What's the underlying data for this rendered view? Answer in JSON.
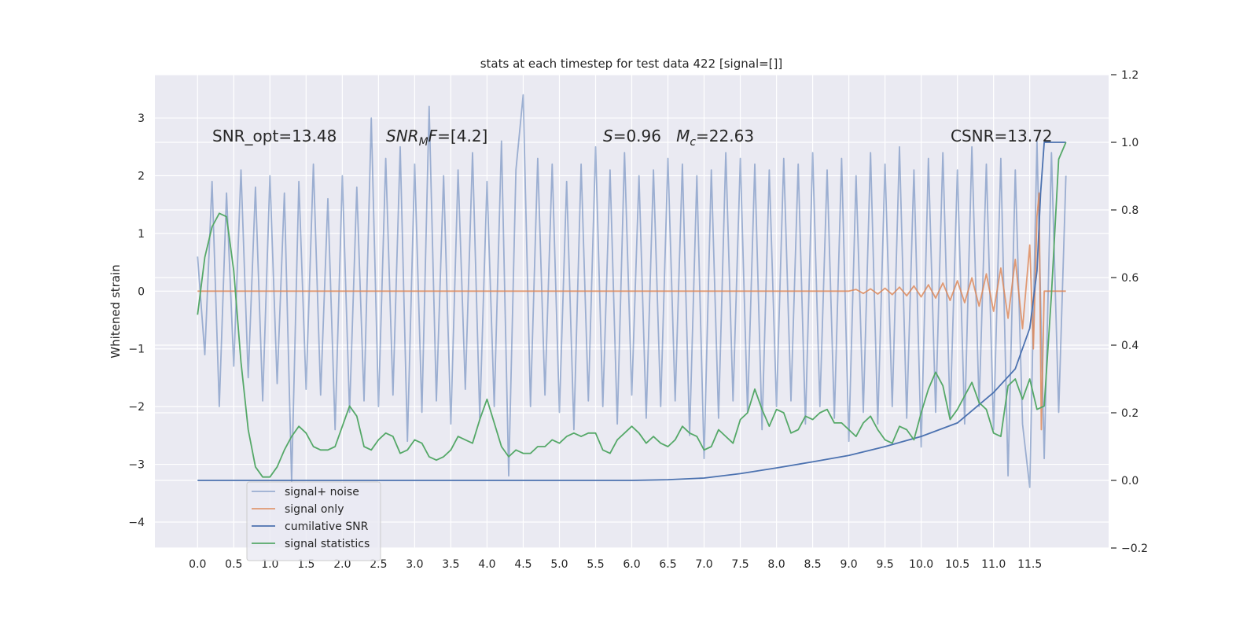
{
  "chart_data": {
    "type": "line",
    "title": "stats at each timestep for test data 422 [signal=[]]",
    "ylabel": "Whitened strain",
    "xlim": [
      -0.59,
      12.59
    ],
    "ylim": [
      -4.45,
      3.75
    ],
    "y2lim": [
      -0.2,
      1.2
    ],
    "grid": true,
    "legend": "lower left",
    "xticks": [
      {
        "value": 0,
        "label": "0.0"
      },
      {
        "value": 0.5,
        "label": "0.5"
      },
      {
        "value": 1,
        "label": "1.0"
      },
      {
        "value": 1.5,
        "label": "1.5"
      },
      {
        "value": 2,
        "label": "2.0"
      },
      {
        "value": 2.5,
        "label": "2.5"
      },
      {
        "value": 3,
        "label": "3.0"
      },
      {
        "value": 3.5,
        "label": "3.5"
      },
      {
        "value": 4,
        "label": "4.0"
      },
      {
        "value": 4.5,
        "label": "4.5"
      },
      {
        "value": 5,
        "label": "5.0"
      },
      {
        "value": 5.5,
        "label": "5.5"
      },
      {
        "value": 6,
        "label": "6.0"
      },
      {
        "value": 6.5,
        "label": "6.5"
      },
      {
        "value": 7,
        "label": "7.0"
      },
      {
        "value": 7.5,
        "label": "7.5"
      },
      {
        "value": 8,
        "label": "8.0"
      },
      {
        "value": 8.5,
        "label": "8.5"
      },
      {
        "value": 9,
        "label": "9.0"
      },
      {
        "value": 9.5,
        "label": "9.5"
      },
      {
        "value": 10,
        "label": "10.0"
      },
      {
        "value": 10.5,
        "label": "10.5"
      },
      {
        "value": 11,
        "label": "11.0"
      },
      {
        "value": 11.5,
        "label": "11.5"
      }
    ],
    "yticks": [
      {
        "value": -4,
        "label": "−4"
      },
      {
        "value": -3,
        "label": "−3"
      },
      {
        "value": -2,
        "label": "−2"
      },
      {
        "value": -1,
        "label": "−1"
      },
      0,
      1,
      2,
      3
    ],
    "y2ticks": [
      {
        "value": -0.2,
        "label": "−0.2"
      },
      {
        "value": 0,
        "label": "0.0"
      },
      0.2,
      0.4,
      0.6,
      0.8,
      {
        "value": 1,
        "label": "1.0"
      },
      {
        "value": 1.2,
        "label": "1.2"
      }
    ],
    "annotations": [
      {
        "parts": [
          {
            "text": "SNR_opt=13.48",
            "style": "normal"
          }
        ]
      },
      {
        "parts": [
          {
            "text": "SNR",
            "style": "italic"
          },
          {
            "text": "M",
            "style": "italic-sub"
          },
          {
            "text": "F",
            "style": "italic"
          },
          {
            "text": "=[4.2]",
            "style": "normal"
          }
        ]
      },
      {
        "parts": [
          {
            "text": "S",
            "style": "italic"
          },
          {
            "text": "=0.96   ",
            "style": "normal"
          },
          {
            "text": "M",
            "style": "italic"
          },
          {
            "text": "c",
            "style": "italic-sub"
          },
          {
            "text": "=22.63",
            "style": "normal"
          }
        ]
      },
      {
        "parts": [
          {
            "text": "CSNR=13.72",
            "style": "normal"
          }
        ]
      }
    ],
    "x": [
      0,
      0.1,
      0.2,
      0.3,
      0.4,
      0.5,
      0.6,
      0.7,
      0.8,
      0.9,
      1,
      1.1,
      1.2,
      1.3,
      1.4,
      1.5,
      1.6,
      1.7,
      1.8,
      1.9,
      2,
      2.1,
      2.2,
      2.3,
      2.4,
      2.5,
      2.6,
      2.7,
      2.8,
      2.9,
      3,
      3.1,
      3.2,
      3.3,
      3.4,
      3.5,
      3.6,
      3.7,
      3.8,
      3.9,
      4,
      4.1,
      4.2,
      4.3,
      4.4,
      4.5,
      4.6,
      4.7,
      4.8,
      4.9,
      5,
      5.1,
      5.2,
      5.3,
      5.4,
      5.5,
      5.6,
      5.7,
      5.8,
      5.9,
      6,
      6.1,
      6.2,
      6.3,
      6.4,
      6.5,
      6.6,
      6.7,
      6.8,
      6.9,
      7,
      7.1,
      7.2,
      7.3,
      7.4,
      7.5,
      7.6,
      7.7,
      7.8,
      7.9,
      8,
      8.1,
      8.2,
      8.3,
      8.4,
      8.5,
      8.6,
      8.7,
      8.8,
      8.9,
      9,
      9.1,
      9.2,
      9.3,
      9.4,
      9.5,
      9.6,
      9.7,
      9.8,
      9.9,
      10,
      10.1,
      10.2,
      10.3,
      10.4,
      10.5,
      10.6,
      10.7,
      10.8,
      10.9,
      11,
      11.1,
      11.2,
      11.3,
      11.4,
      11.5,
      11.6,
      11.7,
      11.8,
      11.9,
      12
    ],
    "series": [
      {
        "name": "signal+ noise",
        "color": "#4c72b0",
        "opacity": 0.5,
        "axis": "y",
        "values": [
          0.6,
          -1.1,
          1.9,
          -2.0,
          1.7,
          -1.3,
          2.1,
          -1.5,
          1.8,
          -1.9,
          2.0,
          -1.6,
          1.7,
          -3.3,
          1.9,
          -1.7,
          2.2,
          -1.8,
          1.6,
          -2.4,
          2.0,
          -2.1,
          1.8,
          -1.9,
          3.0,
          -2.0,
          2.3,
          -1.8,
          2.5,
          -2.6,
          2.2,
          -2.1,
          3.2,
          -1.9,
          2.0,
          -2.3,
          2.1,
          -1.7,
          2.4,
          -2.2,
          1.9,
          -2.0,
          2.6,
          -3.2,
          2.1,
          3.4,
          -2.0,
          2.3,
          -1.8,
          2.2,
          -2.1,
          1.9,
          -2.4,
          2.2,
          -1.9,
          2.5,
          -2.0,
          2.1,
          -2.3,
          2.4,
          -1.8,
          2.0,
          -2.2,
          2.1,
          -2.0,
          2.3,
          -1.9,
          2.2,
          -2.5,
          2.0,
          -2.9,
          2.1,
          -2.2,
          2.4,
          -1.9,
          2.3,
          -2.1,
          2.2,
          -2.4,
          2.1,
          -2.0,
          2.3,
          -1.9,
          2.2,
          -2.3,
          2.4,
          -2.0,
          2.1,
          -2.2,
          2.3,
          -2.6,
          2.0,
          -2.1,
          2.4,
          -2.3,
          2.2,
          -2.0,
          2.5,
          -2.2,
          2.1,
          -2.7,
          2.3,
          -2.1,
          2.4,
          -2.2,
          2.1,
          -2.3,
          2.5,
          -2.0,
          2.2,
          -2.4,
          2.3,
          -3.2,
          2.1,
          -2.3,
          -3.4,
          2.6,
          -2.9,
          2.4,
          -2.1,
          2.0
        ]
      },
      {
        "name": "signal only",
        "color": "#dd8452",
        "opacity": 0.8,
        "axis": "y",
        "x": [
          0,
          9,
          9.1,
          9.2,
          9.3,
          9.4,
          9.5,
          9.6,
          9.7,
          9.8,
          9.9,
          10,
          10.1,
          10.2,
          10.3,
          10.4,
          10.5,
          10.6,
          10.7,
          10.8,
          10.9,
          11,
          11.1,
          11.2,
          11.3,
          11.4,
          11.5,
          11.55,
          11.6,
          11.63,
          11.66,
          11.7,
          12
        ],
        "values": [
          0,
          0,
          0.03,
          -0.04,
          0.04,
          -0.05,
          0.05,
          -0.06,
          0.07,
          -0.08,
          0.09,
          -0.1,
          0.11,
          -0.12,
          0.14,
          -0.16,
          0.18,
          -0.2,
          0.23,
          -0.26,
          0.3,
          -0.35,
          0.4,
          -0.47,
          0.55,
          -0.65,
          0.8,
          -1.0,
          1.3,
          1.7,
          -2.4,
          0,
          0
        ]
      },
      {
        "name": "cumilative SNR",
        "color": "#4c72b0",
        "opacity": 1,
        "axis": "y2",
        "x": [
          0,
          6,
          6.5,
          7,
          7.5,
          8,
          8.5,
          9,
          9.5,
          10,
          10.5,
          11,
          11.3,
          11.5,
          11.6,
          11.65,
          11.7,
          12
        ],
        "values": [
          0,
          0,
          0.002,
          0.007,
          0.02,
          0.037,
          0.055,
          0.074,
          0.1,
          0.13,
          0.17,
          0.26,
          0.33,
          0.45,
          0.62,
          0.85,
          1.0,
          1.0
        ]
      },
      {
        "name": "signal statistics",
        "color": "#55a868",
        "opacity": 1,
        "axis": "y2",
        "values": [
          0.49,
          0.66,
          0.75,
          0.79,
          0.78,
          0.62,
          0.35,
          0.15,
          0.04,
          0.01,
          0.01,
          0.04,
          0.09,
          0.13,
          0.16,
          0.14,
          0.1,
          0.09,
          0.09,
          0.1,
          0.16,
          0.22,
          0.19,
          0.1,
          0.09,
          0.12,
          0.14,
          0.13,
          0.08,
          0.09,
          0.12,
          0.11,
          0.07,
          0.06,
          0.07,
          0.09,
          0.13,
          0.12,
          0.11,
          0.18,
          0.24,
          0.17,
          0.1,
          0.07,
          0.09,
          0.08,
          0.08,
          0.1,
          0.1,
          0.12,
          0.11,
          0.13,
          0.14,
          0.13,
          0.14,
          0.14,
          0.09,
          0.08,
          0.12,
          0.14,
          0.16,
          0.14,
          0.11,
          0.13,
          0.11,
          0.1,
          0.12,
          0.16,
          0.14,
          0.13,
          0.09,
          0.1,
          0.15,
          0.13,
          0.11,
          0.18,
          0.2,
          0.27,
          0.21,
          0.16,
          0.21,
          0.2,
          0.14,
          0.15,
          0.19,
          0.18,
          0.2,
          0.21,
          0.17,
          0.17,
          0.15,
          0.13,
          0.17,
          0.19,
          0.15,
          0.12,
          0.11,
          0.16,
          0.15,
          0.12,
          0.2,
          0.27,
          0.32,
          0.28,
          0.18,
          0.21,
          0.25,
          0.29,
          0.23,
          0.21,
          0.14,
          0.13,
          0.28,
          0.3,
          0.24,
          0.3,
          0.21,
          0.22,
          0.55,
          0.95,
          1.0
        ]
      }
    ]
  }
}
